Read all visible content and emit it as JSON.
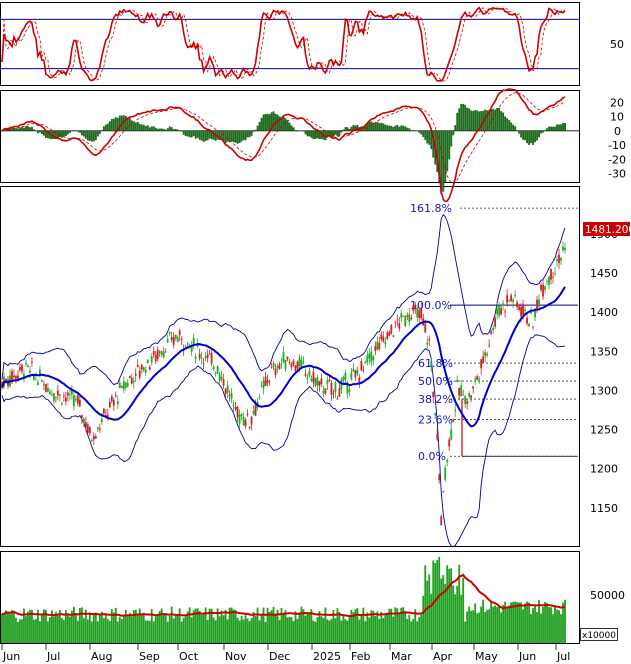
{
  "chart_data": {
    "type": "candlestick",
    "price_panel": {
      "y_ticks": [
        1500,
        1450,
        1400,
        1350,
        1300,
        1250,
        1200,
        1150
      ],
      "last_price_label": "1481.200",
      "last_price": 1481.2,
      "ylim": [
        1100,
        1560
      ],
      "fibonacci": [
        {
          "label": "161.8%",
          "value": 1533
        },
        {
          "label": "100.0%",
          "value": 1409
        },
        {
          "label": "61.8%",
          "value": 1335
        },
        {
          "label": "50.0%",
          "value": 1312
        },
        {
          "label": "38.2%",
          "value": 1289
        },
        {
          "label": "23.6%",
          "value": 1263
        },
        {
          "label": "0.0%",
          "value": 1216
        }
      ],
      "series": [
        {
          "name": "ma20",
          "color": "#0000cc"
        },
        {
          "name": "bollinger",
          "color": "#000099"
        }
      ],
      "key_points": [
        {
          "month": "Jun",
          "close": 1310
        },
        {
          "month": "Jul",
          "close": 1280
        },
        {
          "month": "Aug",
          "close": 1238
        },
        {
          "month": "Sep",
          "close": 1300
        },
        {
          "month": "Oct",
          "close": 1360
        },
        {
          "month": "Nov",
          "close": 1255
        },
        {
          "month": "Dec",
          "close": 1300
        },
        {
          "month": "2025",
          "close": 1320
        },
        {
          "month": "Feb",
          "close": 1330
        },
        {
          "month": "Mar",
          "close": 1390
        },
        {
          "month": "Apr-low",
          "close": 1135
        },
        {
          "month": "May",
          "close": 1330
        },
        {
          "month": "Jun",
          "close": 1400
        },
        {
          "month": "Jul",
          "close": 1481.2
        }
      ]
    },
    "stochastic_panel": {
      "y_ticks": [
        50
      ],
      "levels": [
        80,
        20
      ],
      "ylim": [
        0,
        100
      ],
      "colors": {
        "k": "#cc0000",
        "d": "#cc0000",
        "levels": "#0000aa"
      }
    },
    "macd_panel": {
      "y_ticks": [
        20,
        10,
        0,
        -10,
        -20,
        -30
      ],
      "ylim": [
        -36,
        28
      ],
      "colors": {
        "macd": "#cc0000",
        "signal": "#cc0000",
        "histogram": "#1f6b1f"
      }
    },
    "volume_panel": {
      "y_ticks": [
        50000
      ],
      "unit_label": "x10000",
      "colors": {
        "bars": "#1f9e1f",
        "ma": "#cc0000"
      }
    },
    "x_labels": [
      "Jun",
      "Jul",
      "Aug",
      "Sep",
      "Oct",
      "Nov",
      "Dec",
      "2025",
      "Feb",
      "Mar",
      "Apr",
      "May",
      "Jun",
      "Jul"
    ]
  }
}
